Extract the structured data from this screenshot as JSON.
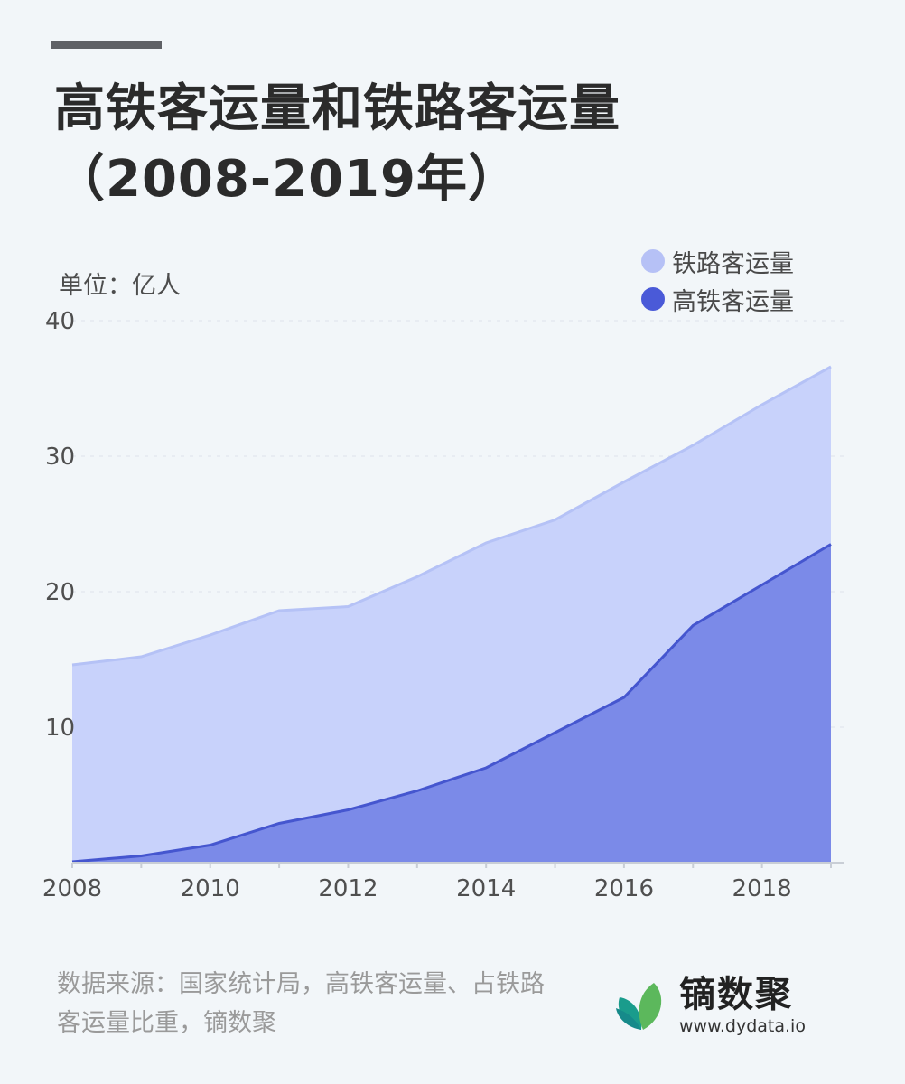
{
  "header": {
    "title_line1": "高铁客运量和铁路客运量",
    "title_line2": "（2008-2019年）"
  },
  "unit_label": "单位：亿人",
  "colors": {
    "railway_fill": "#c8d2fb",
    "railway_line": "#b5c2f6",
    "hsr_fill": "#7b8ae8",
    "hsr_line": "#4556cf",
    "legend_railway": "#b6c1f6",
    "legend_hsr": "#4a5ad8"
  },
  "chart_data": {
    "type": "area",
    "x": [
      2008,
      2009,
      2010,
      2011,
      2012,
      2013,
      2014,
      2015,
      2016,
      2017,
      2018,
      2019
    ],
    "series": [
      {
        "name": "铁路客运量",
        "values": [
          14.6,
          15.2,
          16.8,
          18.6,
          18.9,
          21.1,
          23.6,
          25.3,
          28.1,
          30.8,
          33.8,
          36.6
        ]
      },
      {
        "name": "高铁客运量",
        "values": [
          0.07,
          0.5,
          1.3,
          2.9,
          3.9,
          5.3,
          7.0,
          9.6,
          12.2,
          17.5,
          20.5,
          23.5
        ]
      }
    ],
    "xticks": [
      "2008",
      "2010",
      "2012",
      "2014",
      "2016",
      "2018"
    ],
    "yticks": [
      "40",
      "30",
      "20",
      "10"
    ],
    "ylim": [
      0,
      40
    ],
    "xlim": [
      2008,
      2019
    ],
    "grid": true,
    "legend_position": "top-right"
  },
  "footer": {
    "source": "数据来源：国家统计局，高铁客运量、占铁路客运量比重，镝数聚",
    "brand_name": "镝数聚",
    "brand_url": "www.dydata.io"
  }
}
